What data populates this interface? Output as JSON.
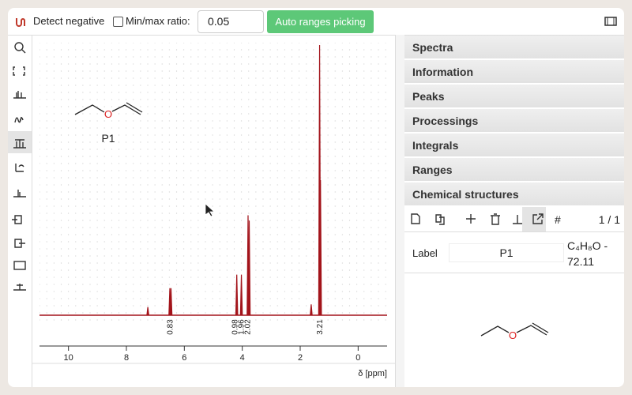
{
  "toolbar": {
    "detect_negative": "Detect negative",
    "ratio_label": "Min/max ratio:",
    "ratio_value": "0.05",
    "auto_button": "Auto ranges picking"
  },
  "spectrum": {
    "xlim": [
      11,
      -1
    ],
    "xticks": [
      10,
      8,
      6,
      4,
      2,
      0
    ],
    "x_label": "δ [ppm]",
    "ylim": [
      0,
      100
    ],
    "color": "#a3141b",
    "peaks": [
      {
        "ppm": 7.26,
        "intensity": 3
      },
      {
        "ppm": 6.5,
        "intensity": 10
      },
      {
        "ppm": 6.46,
        "intensity": 10
      },
      {
        "ppm": 4.19,
        "intensity": 15
      },
      {
        "ppm": 4.03,
        "intensity": 15
      },
      {
        "ppm": 3.8,
        "intensity": 37
      },
      {
        "ppm": 3.76,
        "intensity": 35
      },
      {
        "ppm": 1.62,
        "intensity": 4
      },
      {
        "ppm": 1.33,
        "intensity": 100
      },
      {
        "ppm": 1.3,
        "intensity": 50
      }
    ],
    "ranges": [
      {
        "ppm": 6.49,
        "integral": 0.83
      },
      {
        "ppm": 4.25,
        "integral": 0.98
      },
      {
        "ppm": 4.03,
        "integral": 1.96
      },
      {
        "ppm": 3.81,
        "integral": 2.02
      },
      {
        "ppm": 1.32,
        "integral": 3.21
      }
    ],
    "molecule": {
      "label": "P1",
      "atom": "O"
    }
  },
  "panels": [
    "Spectra",
    "Information",
    "Peaks",
    "Processings",
    "Integrals",
    "Ranges",
    "Chemical structures"
  ],
  "structures": {
    "counter_label": "#",
    "counter": "1 / 1",
    "label_caption": "Label",
    "label_value": "P1",
    "formula": "C₄H₈O - 72.11",
    "atom": "O"
  }
}
